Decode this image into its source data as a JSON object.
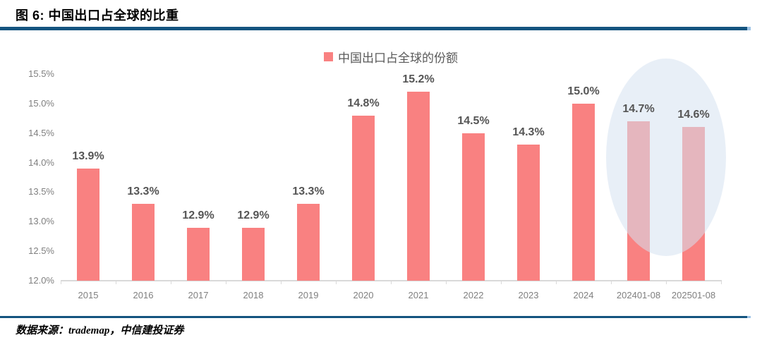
{
  "header": {
    "title": "图 6: 中国出口占全球的比重"
  },
  "legend": {
    "label": "中国出口占全球的份额",
    "marker_color": "#F98181"
  },
  "chart_data": {
    "type": "bar",
    "title": "中国出口占全球的比重",
    "categories": [
      "2015",
      "2016",
      "2017",
      "2018",
      "2019",
      "2020",
      "2021",
      "2022",
      "2023",
      "2024",
      "202401-08",
      "202501-08"
    ],
    "values": [
      13.9,
      13.3,
      12.9,
      12.9,
      13.3,
      14.8,
      15.2,
      14.5,
      14.3,
      15.0,
      14.7,
      14.6
    ],
    "data_labels": [
      "13.9%",
      "13.3%",
      "12.9%",
      "12.9%",
      "13.3%",
      "14.8%",
      "15.2%",
      "14.5%",
      "14.3%",
      "15.0%",
      "14.7%",
      "14.6%"
    ],
    "series_name": "中国出口占全球的份额",
    "xlabel": "",
    "ylabel": "",
    "ylim": [
      12.0,
      15.5
    ],
    "yticks": [
      15.5,
      15.0,
      14.5,
      14.0,
      13.5,
      13.0,
      12.5,
      12.0
    ],
    "ytick_labels": [
      "15.5%",
      "15.0%",
      "14.5%",
      "14.0%",
      "13.5%",
      "13.0%",
      "12.5%",
      "12.0%"
    ],
    "grid": false,
    "legend_position": "top-center",
    "bar_color": "#F98181",
    "highlight": {
      "shape": "ellipse",
      "categories": [
        "202401-08",
        "202501-08"
      ],
      "color": "rgba(214,226,240,0.55)"
    }
  },
  "footer": {
    "source": "数据来源：trademap，中信建投证券"
  },
  "colors": {
    "accent_blue": "#14547F",
    "accent_blue_light": "#9DC3E6",
    "bar": "#F98181",
    "axis_text": "#7F7F7F",
    "data_label_text": "#555555",
    "baseline": "#D9D9D9"
  }
}
